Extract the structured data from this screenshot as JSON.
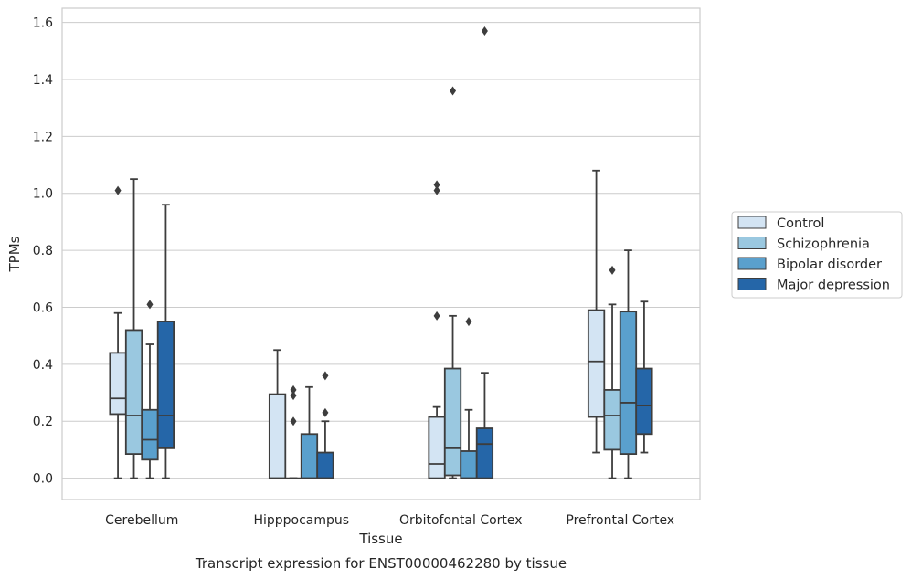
{
  "chart_data": {
    "type": "box",
    "xlabel": "Tissue",
    "ylabel": "TPMs",
    "caption": "Transcript expression for ENST00000462280 by tissue",
    "ylim": [
      -0.075,
      1.65
    ],
    "yticks": [
      0.0,
      0.2,
      0.4,
      0.6,
      0.8,
      1.0,
      1.2,
      1.4,
      1.6
    ],
    "ytick_labels": [
      "0.0",
      "0.2",
      "0.4",
      "0.6",
      "0.8",
      "1.0",
      "1.2",
      "1.4",
      "1.6"
    ],
    "grid": "horizontal",
    "legend_position": "right",
    "categories": [
      "Cerebellum",
      "Hipppocampus",
      "Orbitofontal Cortex",
      "Prefrontal Cortex"
    ],
    "series": [
      {
        "name": "Control",
        "color": "#d3e4f3",
        "boxes": [
          {
            "low": 0.0,
            "q1": 0.225,
            "median": 0.28,
            "q3": 0.44,
            "high": 0.58,
            "outliers": [
              1.01
            ]
          },
          {
            "low": 0.0,
            "q1": 0.0,
            "median": 0.0,
            "q3": 0.295,
            "high": 0.45,
            "outliers": []
          },
          {
            "low": 0.0,
            "q1": 0.0,
            "median": 0.05,
            "q3": 0.215,
            "high": 0.25,
            "outliers": [
              0.57,
              1.01,
              1.03
            ]
          },
          {
            "low": 0.09,
            "q1": 0.215,
            "median": 0.41,
            "q3": 0.59,
            "high": 1.08,
            "outliers": []
          }
        ]
      },
      {
        "name": "Schizophrenia",
        "color": "#9ac8e0",
        "boxes": [
          {
            "low": 0.0,
            "q1": 0.085,
            "median": 0.22,
            "q3": 0.52,
            "high": 1.05,
            "outliers": []
          },
          {
            "low": 0.0,
            "q1": 0.0,
            "median": 0.0,
            "q3": 0.0,
            "high": 0.0,
            "outliers": [
              0.2,
              0.29,
              0.31
            ]
          },
          {
            "low": 0.0,
            "q1": 0.01,
            "median": 0.105,
            "q3": 0.385,
            "high": 0.57,
            "outliers": [
              1.36
            ]
          },
          {
            "low": 0.0,
            "q1": 0.1,
            "median": 0.22,
            "q3": 0.31,
            "high": 0.61,
            "outliers": [
              0.73
            ]
          }
        ]
      },
      {
        "name": "Bipolar disorder",
        "color": "#5aa0cd",
        "boxes": [
          {
            "low": 0.0,
            "q1": 0.065,
            "median": 0.135,
            "q3": 0.24,
            "high": 0.47,
            "outliers": [
              0.61
            ]
          },
          {
            "low": 0.0,
            "q1": 0.0,
            "median": 0.0,
            "q3": 0.155,
            "high": 0.32,
            "outliers": []
          },
          {
            "low": 0.0,
            "q1": 0.0,
            "median": 0.0,
            "q3": 0.095,
            "high": 0.24,
            "outliers": [
              0.55
            ]
          },
          {
            "low": 0.0,
            "q1": 0.085,
            "median": 0.265,
            "q3": 0.585,
            "high": 0.8,
            "outliers": []
          }
        ]
      },
      {
        "name": "Major depression",
        "color": "#2566a8",
        "boxes": [
          {
            "low": 0.0,
            "q1": 0.105,
            "median": 0.22,
            "q3": 0.55,
            "high": 0.96,
            "outliers": []
          },
          {
            "low": 0.0,
            "q1": 0.0,
            "median": 0.0,
            "q3": 0.09,
            "high": 0.2,
            "outliers": [
              0.23,
              0.36
            ]
          },
          {
            "low": 0.0,
            "q1": 0.0,
            "median": 0.12,
            "q3": 0.175,
            "high": 0.37,
            "outliers": [
              1.57
            ]
          },
          {
            "low": 0.09,
            "q1": 0.155,
            "median": 0.255,
            "q3": 0.385,
            "high": 0.62,
            "outliers": []
          }
        ]
      }
    ]
  }
}
